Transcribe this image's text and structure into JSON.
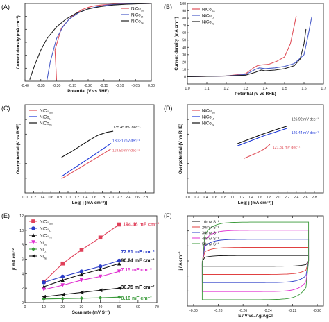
{
  "chart_data": [
    {
      "id": "A",
      "type": "line",
      "panel_label": "(A)",
      "xlabel": "Potential (V vs RHE)",
      "ylabel": "Current density (mA cm⁻²)",
      "xlim": [
        -0.4,
        0.0
      ],
      "ylim": [
        -100,
        0
      ],
      "xticks": [
        "-0.40",
        "-0.35",
        "-0.30",
        "-0.25",
        "-0.20",
        "-0.15",
        "-0.10",
        "-0.05",
        "0.00"
      ],
      "yticks": [],
      "legend_position": "top-right",
      "series": [
        {
          "name": "NiCo",
          "sub": "Sa",
          "color": "#e0505a",
          "x": [
            -0.3,
            -0.305,
            -0.285,
            -0.26,
            -0.24,
            -0.22,
            -0.2,
            -0.18,
            -0.16,
            -0.12,
            -0.08,
            -0.04,
            0.0
          ],
          "y": [
            -98,
            -60,
            -32,
            -20,
            -13,
            -8,
            -5,
            -3,
            -2,
            -1,
            -0.5,
            -0.2,
            0
          ]
        },
        {
          "name": "NiCo",
          "sub": "Lt",
          "color": "#4a5cc8",
          "x": [
            -0.33,
            -0.32,
            -0.3,
            -0.28,
            -0.26,
            -0.23,
            -0.2,
            -0.17,
            -0.14,
            -0.1,
            -0.06,
            0.0
          ],
          "y": [
            -98,
            -75,
            -45,
            -30,
            -20,
            -12,
            -7,
            -4,
            -2,
            -1,
            -0.4,
            0
          ]
        },
        {
          "name": "NiCo",
          "sub": "Te",
          "color": "#222222",
          "x": [
            -0.385,
            -0.37,
            -0.35,
            -0.33,
            -0.3,
            -0.27,
            -0.24,
            -0.2,
            -0.16,
            -0.12,
            -0.08,
            -0.04,
            0.0
          ],
          "y": [
            -98,
            -80,
            -60,
            -45,
            -30,
            -20,
            -13,
            -7,
            -4,
            -2,
            -1,
            -0.4,
            0
          ]
        }
      ]
    },
    {
      "id": "B",
      "type": "line",
      "panel_label": "(B)",
      "xlabel": "Potential (V vs RHE)",
      "ylabel": "Current density (mA cm⁻²)",
      "xlim": [
        1.0,
        1.7
      ],
      "ylim": [
        -10,
        100
      ],
      "xticks": [
        "1.0",
        "1.1",
        "1.2",
        "1.3",
        "1.4",
        "1.5",
        "1.6",
        "1.7"
      ],
      "yticks": [
        "0",
        "10",
        "20",
        "30",
        "40",
        "50",
        "60",
        "70",
        "80",
        "90",
        "100"
      ],
      "legend_position": "top-left",
      "series": [
        {
          "name": "NiCo",
          "sub": "Sa",
          "color": "#e0505a",
          "x": [
            1.0,
            1.2,
            1.3,
            1.34,
            1.36,
            1.38,
            1.42,
            1.46,
            1.5,
            1.53,
            1.55,
            1.56
          ],
          "y": [
            0,
            1,
            4,
            12,
            15,
            16,
            17,
            21,
            27,
            45,
            70,
            83
          ]
        },
        {
          "name": "NiCo",
          "sub": "Lt",
          "color": "#4a5cc8",
          "x": [
            1.0,
            1.2,
            1.3,
            1.35,
            1.37,
            1.4,
            1.45,
            1.5,
            1.55,
            1.6,
            1.62,
            1.64
          ],
          "y": [
            0,
            1,
            3,
            10,
            12,
            11,
            12,
            14,
            18,
            30,
            55,
            82
          ]
        },
        {
          "name": "NiCo",
          "sub": "Te",
          "color": "#222222",
          "x": [
            1.0,
            1.2,
            1.3,
            1.35,
            1.38,
            1.4,
            1.45,
            1.5,
            1.55,
            1.58,
            1.6,
            1.61
          ],
          "y": [
            0,
            1,
            2,
            6,
            9,
            8,
            9,
            11,
            15,
            24,
            45,
            65
          ]
        }
      ]
    },
    {
      "id": "C",
      "type": "line",
      "panel_label": "(C)",
      "xlabel": "Log[ j (mA cm⁻²)]",
      "ylabel": "Overpotential (V vs RHE)",
      "xlim": [
        0.0,
        3.0
      ],
      "ylim": [
        0.1,
        0.5
      ],
      "xticks": [
        "0.0",
        "0.2",
        "0.4",
        "0.6",
        "0.8",
        "1.0",
        "1.2",
        "1.4",
        "1.6",
        "1.8",
        "2.0",
        "2.2",
        "2.4",
        "2.6",
        "2.8"
      ],
      "yticks": [],
      "legend_position": "top-left",
      "series": [
        {
          "name": "NiCo",
          "sub": "Sa",
          "color": "#e0505a",
          "annotation": "118.50 mV dec⁻¹",
          "x": [
            0.85,
            1.2,
            1.6,
            2.0
          ],
          "y": [
            0.165,
            0.205,
            0.252,
            0.3
          ]
        },
        {
          "name": "NiCo",
          "sub": "Lt",
          "color": "#1a35d8",
          "annotation": "130.31 mV dec⁻¹",
          "x": [
            0.85,
            1.2,
            1.6,
            2.0
          ],
          "y": [
            0.175,
            0.22,
            0.272,
            0.325
          ]
        },
        {
          "name": "NiCo",
          "sub": "Te",
          "color": "#111111",
          "annotation": "135.45 mV dec⁻¹",
          "x": [
            0.85,
            1.1,
            1.3,
            1.5,
            1.7,
            1.9,
            2.05
          ],
          "y": [
            0.262,
            0.29,
            0.315,
            0.34,
            0.362,
            0.375,
            0.38
          ]
        }
      ]
    },
    {
      "id": "D",
      "type": "line",
      "panel_label": "(D)",
      "xlabel": "Log[ j (mA cm⁻²)]",
      "ylabel": "Overpotential (V vs RHE)",
      "xlim": [
        0.0,
        3.0
      ],
      "ylim": [
        0.0,
        0.6
      ],
      "xticks": [
        "0.0",
        "0.2",
        "0.4",
        "0.6",
        "0.8",
        "1.0",
        "1.2",
        "1.4",
        "1.6",
        "1.8",
        "2.0",
        "2.2",
        "2.4",
        "2.6",
        "2.8"
      ],
      "yticks": [],
      "legend_position": "top-left",
      "series": [
        {
          "name": "NiCo",
          "sub": "Sa",
          "color": "#e0505a",
          "annotation": "121.31 mV dec⁻¹",
          "x": [
            1.25,
            1.4,
            1.55,
            1.7,
            1.82
          ],
          "y": [
            0.235,
            0.255,
            0.275,
            0.3,
            0.33
          ]
        },
        {
          "name": "NiCo",
          "sub": "Lt",
          "color": "#1a35d8",
          "annotation": "126.44 mV dec⁻¹",
          "x": [
            1.1,
            1.4,
            1.7,
            2.0,
            2.2
          ],
          "y": [
            0.32,
            0.355,
            0.39,
            0.42,
            0.44
          ]
        },
        {
          "name": "NiCo",
          "sub": "Te",
          "color": "#111111",
          "annotation": "126.92 mV dec⁻¹",
          "x": [
            1.1,
            1.4,
            1.7,
            2.0,
            2.2
          ],
          "y": [
            0.335,
            0.37,
            0.405,
            0.435,
            0.455
          ]
        }
      ]
    },
    {
      "id": "E",
      "type": "line",
      "panel_label": "(E)",
      "xlabel": "Scan rate (mV S⁻¹)",
      "ylabel": "j/ mA cm⁻²",
      "xlim": [
        0,
        70
      ],
      "ylim": [
        0,
        12
      ],
      "xticks": [
        "0",
        "10",
        "20",
        "30",
        "40",
        "50",
        "60",
        "70"
      ],
      "yticks": [
        "0",
        "2",
        "4",
        "6",
        "8",
        "10",
        "12"
      ],
      "legend_position": "top-left",
      "series": [
        {
          "name": "NiCo",
          "sub": "Sa",
          "color": "#e0405a",
          "marker": "square",
          "annotation": "194.46 mF cm⁻²",
          "x": [
            10,
            20,
            30,
            40,
            50
          ],
          "y": [
            2.9,
            5.4,
            7.3,
            9.0,
            10.8
          ]
        },
        {
          "name": "NiCo",
          "sub": "Lt",
          "color": "#2a3cc8",
          "marker": "circle",
          "annotation": "72.81 mF cm⁻²",
          "x": [
            10,
            20,
            30,
            40,
            50
          ],
          "y": [
            2.8,
            3.6,
            4.3,
            5.0,
            5.8
          ]
        },
        {
          "name": "NiCo",
          "sub": "Te",
          "color": "#111111",
          "marker": "triangle",
          "annotation": "90.24 mF cm⁻²",
          "x": [
            10,
            20,
            30,
            40,
            50
          ],
          "y": [
            2.2,
            3.1,
            3.9,
            4.6,
            5.4
          ]
        },
        {
          "name": "Ni",
          "sub": "Sa",
          "color": "#e030d0",
          "marker": "triangle-down",
          "annotation": "7.15 mF cm⁻²",
          "x": [
            10,
            20,
            30,
            40,
            50
          ],
          "y": [
            1.8,
            2.4,
            3.1,
            3.6,
            4.3
          ]
        },
        {
          "name": "Ni",
          "sub": "Lt",
          "color": "#3a9a3a",
          "marker": "diamond",
          "annotation": "8.16 mF cm⁻²",
          "x": [
            10,
            20,
            30,
            40,
            50
          ],
          "y": [
            0.5,
            0.55,
            0.6,
            0.65,
            0.75
          ]
        },
        {
          "name": "Ni",
          "sub": "Te",
          "color": "#111111",
          "marker": "triangle-left",
          "annotation": "30.75 mF cm⁻²",
          "x": [
            10,
            20,
            30,
            40,
            50
          ],
          "y": [
            0.8,
            1.1,
            1.4,
            1.7,
            2.0
          ]
        }
      ]
    },
    {
      "id": "F",
      "type": "line",
      "panel_label": "(F)",
      "xlabel": "E / V vs. Ag/AgCl",
      "ylabel": "j / A cm⁻²",
      "xlim": [
        -0.305,
        -0.195
      ],
      "ylim": [
        -1,
        1
      ],
      "xticks": [
        "-0.30",
        "-0.28",
        "-0.26",
        "-0.24",
        "-0.22",
        "-0.20"
      ],
      "yticks": [],
      "legend_position": "top-left",
      "loops": [
        {
          "name": "10mV S⁻¹",
          "color": "#111111",
          "amp": 0.12
        },
        {
          "name": "20mV S⁻¹",
          "color": "#e04040",
          "amp": 0.3
        },
        {
          "name": "30mV S⁻¹",
          "color": "#2a3cc8",
          "amp": 0.48
        },
        {
          "name": "40mV S⁻¹",
          "color": "#e030d0",
          "amp": 0.68
        },
        {
          "name": "50mV S⁻¹",
          "color": "#3a9a3a",
          "amp": 0.86
        }
      ]
    }
  ]
}
